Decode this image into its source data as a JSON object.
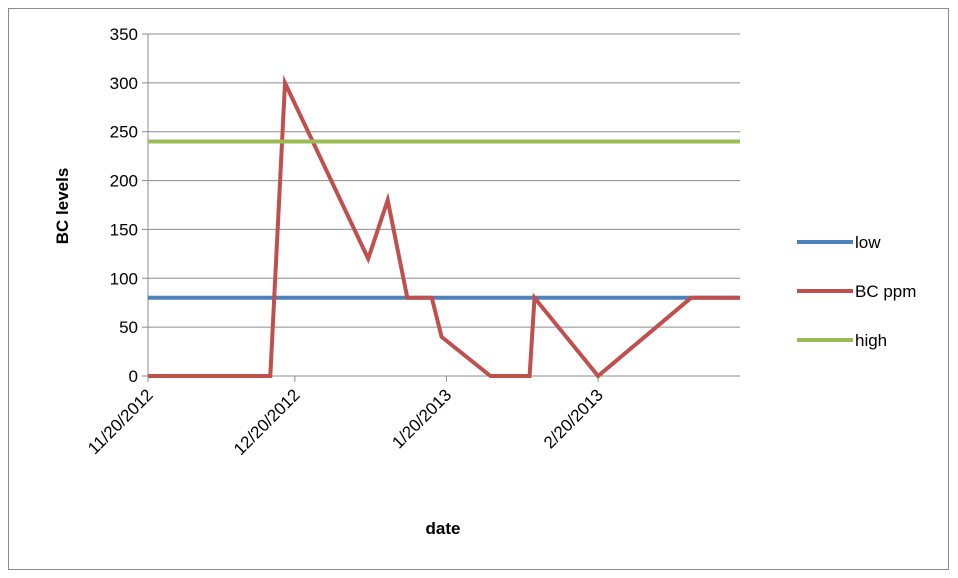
{
  "chart_data": {
    "type": "line",
    "xlabel": "date",
    "ylabel": "BC levels",
    "ylim": [
      0,
      350
    ],
    "y_ticks": [
      0,
      50,
      100,
      150,
      200,
      250,
      300,
      350
    ],
    "xlim": [
      "2012-11-20",
      "2013-03-21"
    ],
    "x_ticks": [
      "11/20/2012",
      "12/20/2012",
      "1/20/2013",
      "2/20/2013"
    ],
    "grid": "horizontal",
    "legend_position": "right",
    "series": [
      {
        "name": "low",
        "color": "#4f81bd",
        "points": [
          [
            "2012-11-20",
            80
          ],
          [
            "2013-03-21",
            80
          ]
        ]
      },
      {
        "name": "BC ppm",
        "color": "#c0504d",
        "points": [
          [
            "2012-11-20",
            0
          ],
          [
            "2012-12-15",
            0
          ],
          [
            "2012-12-18",
            300
          ],
          [
            "2013-01-04",
            120
          ],
          [
            "2013-01-08",
            180
          ],
          [
            "2013-01-12",
            80
          ],
          [
            "2013-01-17",
            80
          ],
          [
            "2013-01-19",
            40
          ],
          [
            "2013-01-29",
            0
          ],
          [
            "2013-02-06",
            0
          ],
          [
            "2013-02-07",
            80
          ],
          [
            "2013-02-20",
            0
          ],
          [
            "2013-03-11",
            80
          ],
          [
            "2013-03-21",
            80
          ]
        ]
      },
      {
        "name": "high",
        "color": "#9bbb59",
        "points": [
          [
            "2012-11-20",
            240
          ],
          [
            "2013-03-21",
            240
          ]
        ]
      }
    ]
  }
}
